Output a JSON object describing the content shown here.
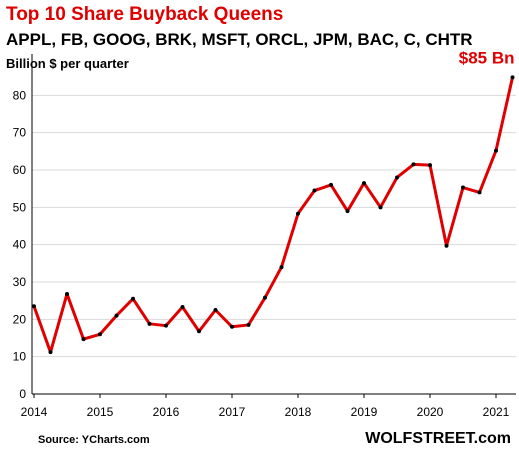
{
  "chart_data": {
    "type": "line",
    "title": "Top 10 Share Buyback Queens",
    "subtitle": "APPL, FB, GOOG, BRK, MSFT, ORCL, JPM, BAC, C, CHTR",
    "ylabel": "Billion $ per quarter",
    "source": "Source: YCharts.com",
    "brand": "WOLFSTREET.com",
    "annotation": "$85 Bn",
    "ylim": [
      0,
      90
    ],
    "xlim": [
      2014,
      2021.3
    ],
    "yticks": [
      0,
      10,
      20,
      30,
      40,
      50,
      60,
      70,
      80
    ],
    "xticks": [
      2014,
      2015,
      2016,
      2017,
      2018,
      2019,
      2020,
      2021
    ],
    "grid": true,
    "line_color": "#e00000",
    "series": [
      {
        "x": [
          2014.0,
          2014.25,
          2014.5,
          2014.75,
          2015.0,
          2015.25,
          2015.5,
          2015.75,
          2016.0,
          2016.25,
          2016.5,
          2016.75,
          2017.0,
          2017.25,
          2017.5,
          2017.75,
          2018.0,
          2018.25,
          2018.5,
          2018.75,
          2019.0,
          2019.25,
          2019.5,
          2019.75,
          2020.0,
          2020.25,
          2020.5,
          2020.75,
          2021.0,
          2021.25
        ],
        "values": [
          23.5,
          11.2,
          26.8,
          14.7,
          16.0,
          21.0,
          25.5,
          18.8,
          18.3,
          23.3,
          16.8,
          22.5,
          18.0,
          18.5,
          25.8,
          34.0,
          48.3,
          54.5,
          56.0,
          49.0,
          56.5,
          50.0,
          58.0,
          61.5,
          61.3,
          39.7,
          55.3,
          54.0,
          65.2,
          84.8
        ]
      }
    ]
  }
}
